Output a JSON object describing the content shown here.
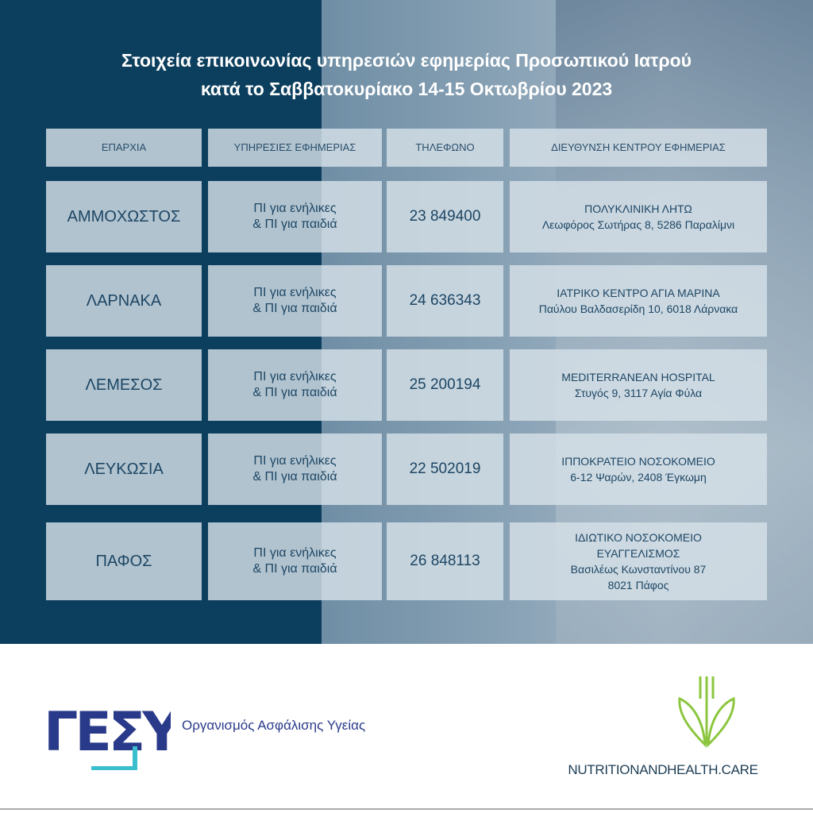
{
  "title": {
    "line1": "Στοιχεία επικοινωνίας υπηρεσιών εφημερίας Προσωπικού Ιατρού",
    "line2": "κατά το Σαββατοκυρίακο 14-15 Οκτωβρίου 2023"
  },
  "table": {
    "headers": [
      "ΕΠΑΡΧΙΑ",
      "ΥΠΗΡΕΣΙΕΣ ΕΦΗΜΕΡΙΑΣ",
      "ΤΗΛΕΦΩΝΟ",
      "ΔΙΕΥΘΥΝΣΗ ΚΕΝΤΡΟΥ ΕΦΗΜΕΡΙΑΣ"
    ],
    "rows": [
      {
        "province": "ΑΜΜΟΧΩΣΤΟΣ",
        "service1": "ΠΙ για ενήλικες",
        "service2": "& ΠΙ για παιδιά",
        "phone": "23 849400",
        "address": [
          "ΠΟΛΥΚΛΙΝΙΚΗ ΛΗΤΩ",
          "Λεωφόρος Σωτήρας 8, 5286 Παραλίμνι"
        ]
      },
      {
        "province": "ΛΑΡΝΑΚΑ",
        "service1": "ΠΙ για ενήλικες",
        "service2": "& ΠΙ για παιδιά",
        "phone": "24 636343",
        "address": [
          "ΙΑΤΡΙΚΟ ΚΕΝΤΡΟ ΑΓΙΑ ΜΑΡΙΝΑ",
          "Παύλου Βαλδασερίδη 10, 6018 Λάρνακα"
        ]
      },
      {
        "province": "ΛΕΜΕΣΟΣ",
        "service1": "ΠΙ για ενήλικες",
        "service2": "& ΠΙ για παιδιά",
        "phone": "25 200194",
        "address": [
          "MEDITERRANEAN HOSPITAL",
          "Στυγός 9, 3117 Αγία Φύλα"
        ]
      },
      {
        "province": "ΛΕΥΚΩΣΙΑ",
        "service1": "ΠΙ για ενήλικες",
        "service2": "& ΠΙ για παιδιά",
        "phone": "22 502019",
        "address": [
          "ΙΠΠΟΚΡΑΤΕΙΟ ΝΟΣΟΚΟΜΕΙΟ",
          "6-12 Ψαρών, 2408 Έγκωμη"
        ]
      },
      {
        "province": "ΠΑΦΟΣ",
        "service1": "ΠΙ για ενήλικες",
        "service2": "& ΠΙ για παιδιά",
        "phone": "26 848113",
        "address": [
          "ΙΔΙΩΤΙΚΟ ΝΟΣΟΚΟΜΕΙΟ",
          "ΕΥΑΓΓΕΛΙΣΜΟΣ",
          "Βασιλέως Κωνσταντίνου 87",
          "8021 Πάφος"
        ]
      }
    ]
  },
  "footer": {
    "gesy_logo": "ΓΕΣΥ",
    "gesy_text": "Οργανισμός Ασφάλισης Υγείας",
    "nh_text": "NUTRITIONANDHEALTH.CARE"
  },
  "colors": {
    "navy": "#0c3f5e",
    "cell": "#d6e0e8",
    "text": "#1d4664",
    "gesy_blue": "#2a3a8a",
    "gesy_cyan": "#3bbfcf",
    "leaf_green": "#8cc63f"
  }
}
